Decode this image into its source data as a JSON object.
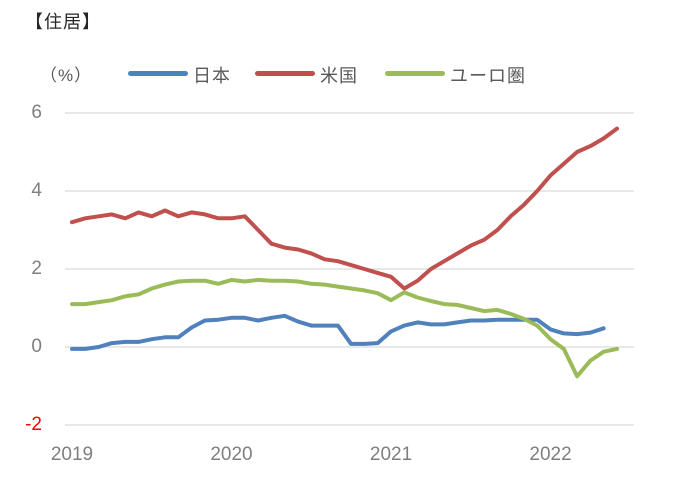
{
  "title": "【住居】",
  "unit_label": "（%）",
  "legend": [
    {
      "id": "japan",
      "label": "日本",
      "color": "#4f81bd"
    },
    {
      "id": "us",
      "label": "米国",
      "color": "#c0504d"
    },
    {
      "id": "euro-area",
      "label": "ユーロ圏",
      "color": "#9bbb59"
    }
  ],
  "axes": {
    "y_ticks": [
      6,
      4,
      2,
      0,
      -2
    ],
    "x_ticks": [
      "2019",
      "2020",
      "2021",
      "2022"
    ],
    "tick_color": "#7f7f7f",
    "negative_tick_color": "#ff0000",
    "gridline_color": "#d9d9d9"
  },
  "chart_data": {
    "type": "line",
    "title": "【住居】",
    "ylabel": "%",
    "ylim": [
      -2,
      6
    ],
    "y_ticks": [
      -2,
      0,
      2,
      4,
      6
    ],
    "grid": "horizontal",
    "legend_position": "top",
    "categories": [
      "2019-01",
      "2019-02",
      "2019-03",
      "2019-04",
      "2019-05",
      "2019-06",
      "2019-07",
      "2019-08",
      "2019-09",
      "2019-10",
      "2019-11",
      "2019-12",
      "2020-01",
      "2020-02",
      "2020-03",
      "2020-04",
      "2020-05",
      "2020-06",
      "2020-07",
      "2020-08",
      "2020-09",
      "2020-10",
      "2020-11",
      "2020-12",
      "2021-01",
      "2021-02",
      "2021-03",
      "2021-04",
      "2021-05",
      "2021-06",
      "2021-07",
      "2021-08",
      "2021-09",
      "2021-10",
      "2021-11",
      "2021-12",
      "2022-01",
      "2022-02",
      "2022-03",
      "2022-04",
      "2022-05",
      "2022-06"
    ],
    "series": [
      {
        "name": "日本",
        "color": "#4f81bd",
        "values": [
          -0.05,
          -0.05,
          0.0,
          0.1,
          0.13,
          0.13,
          0.2,
          0.25,
          0.25,
          0.5,
          0.68,
          0.7,
          0.75,
          0.75,
          0.68,
          0.75,
          0.8,
          0.65,
          0.55,
          0.55,
          0.55,
          0.08,
          0.08,
          0.1,
          0.4,
          0.55,
          0.63,
          0.58,
          0.58,
          0.63,
          0.68,
          0.68,
          0.7,
          0.7,
          0.7,
          0.7,
          0.45,
          0.35,
          0.33,
          0.37,
          0.48
        ]
      },
      {
        "name": "米国",
        "color": "#c0504d",
        "values": [
          3.2,
          3.3,
          3.35,
          3.4,
          3.3,
          3.45,
          3.35,
          3.5,
          3.35,
          3.45,
          3.4,
          3.3,
          3.3,
          3.35,
          3.0,
          2.65,
          2.55,
          2.5,
          2.4,
          2.25,
          2.2,
          2.1,
          2.0,
          1.9,
          1.8,
          1.5,
          1.7,
          2.0,
          2.2,
          2.4,
          2.6,
          2.75,
          3.0,
          3.35,
          3.65,
          4.0,
          4.4,
          4.7,
          5.0,
          5.15,
          5.35,
          5.6
        ]
      },
      {
        "name": "ユーロ圏",
        "color": "#9bbb59",
        "values": [
          1.1,
          1.1,
          1.15,
          1.2,
          1.3,
          1.35,
          1.5,
          1.6,
          1.68,
          1.7,
          1.7,
          1.62,
          1.72,
          1.68,
          1.72,
          1.7,
          1.7,
          1.68,
          1.62,
          1.6,
          1.55,
          1.5,
          1.45,
          1.38,
          1.2,
          1.4,
          1.27,
          1.18,
          1.1,
          1.08,
          1.0,
          0.92,
          0.95,
          0.85,
          0.72,
          0.55,
          0.2,
          -0.05,
          -0.75,
          -0.35,
          -0.12,
          -0.05
        ]
      }
    ]
  }
}
